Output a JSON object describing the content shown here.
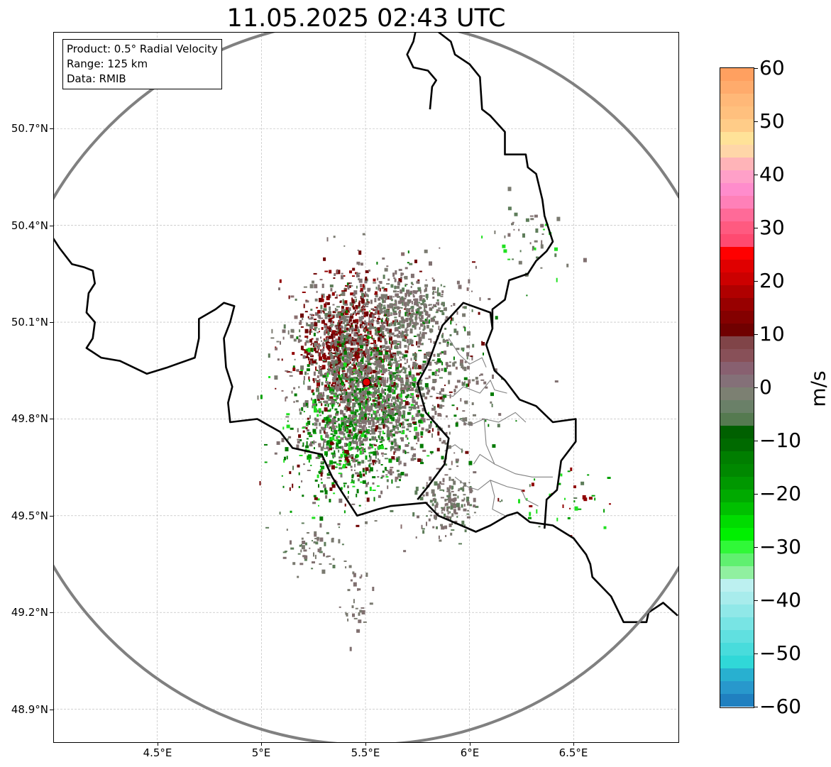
{
  "title": "11.05.2025 02:43 UTC",
  "info_box": {
    "product": "Product: 0.5° Radial Velocity",
    "range": "Range: 125 km",
    "data": "Data: RMIB"
  },
  "map": {
    "extent_lon": [
      4.0,
      7.0
    ],
    "extent_lat": [
      48.8,
      51.0
    ],
    "radar_site": {
      "lon": 5.505,
      "lat": 49.914
    },
    "range_km": 125,
    "lat_ticks": [
      {
        "value": 50.7,
        "label": "50.7°N"
      },
      {
        "value": 50.4,
        "label": "50.4°N"
      },
      {
        "value": 50.1,
        "label": "50.1°N"
      },
      {
        "value": 49.8,
        "label": "49.8°N"
      },
      {
        "value": 49.5,
        "label": "49.5°N"
      },
      {
        "value": 49.2,
        "label": "49.2°N"
      },
      {
        "value": 48.9,
        "label": "48.9°N"
      }
    ],
    "lon_ticks": [
      {
        "value": 4.5,
        "label": "4.5°E"
      },
      {
        "value": 5.0,
        "label": "5°E"
      },
      {
        "value": 5.5,
        "label": "5.5°E"
      },
      {
        "value": 6.0,
        "label": "6°E"
      },
      {
        "value": 6.5,
        "label": "6.5°E"
      }
    ],
    "borders": [
      [
        [
          4.0,
          50.36
        ],
        [
          4.03,
          50.33
        ],
        [
          4.09,
          50.28
        ],
        [
          4.15,
          50.27
        ],
        [
          4.19,
          50.26
        ],
        [
          4.2,
          50.22
        ],
        [
          4.17,
          50.19
        ],
        [
          4.16,
          50.13
        ],
        [
          4.2,
          50.1
        ],
        [
          4.19,
          50.05
        ],
        [
          4.16,
          50.02
        ],
        [
          4.23,
          49.99
        ],
        [
          4.32,
          49.98
        ],
        [
          4.45,
          49.94
        ],
        [
          4.55,
          49.96
        ],
        [
          4.68,
          49.99
        ],
        [
          4.7,
          50.05
        ],
        [
          4.7,
          50.11
        ],
        [
          4.78,
          50.14
        ],
        [
          4.82,
          50.16
        ],
        [
          4.87,
          50.15
        ],
        [
          4.85,
          50.1
        ],
        [
          4.82,
          50.05
        ],
        [
          4.83,
          49.96
        ],
        [
          4.86,
          49.9
        ],
        [
          4.84,
          49.85
        ],
        [
          4.85,
          49.79
        ],
        [
          4.98,
          49.8
        ],
        [
          5.09,
          49.76
        ],
        [
          5.15,
          49.71
        ],
        [
          5.29,
          49.69
        ],
        [
          5.34,
          49.62
        ],
        [
          5.46,
          49.5
        ],
        [
          5.56,
          49.52
        ],
        [
          5.62,
          49.53
        ],
        [
          5.79,
          49.54
        ],
        [
          5.85,
          49.5
        ],
        [
          5.96,
          49.47
        ],
        [
          6.03,
          49.45
        ],
        [
          6.1,
          49.47
        ],
        [
          6.18,
          49.5
        ],
        [
          6.23,
          49.51
        ],
        [
          6.29,
          49.48
        ],
        [
          6.4,
          49.47
        ],
        [
          6.5,
          49.43
        ],
        [
          6.56,
          49.38
        ],
        [
          6.58,
          49.35
        ],
        [
          6.59,
          49.31
        ],
        [
          6.68,
          49.25
        ],
        [
          6.74,
          49.17
        ],
        [
          6.85,
          49.17
        ],
        [
          6.86,
          49.2
        ],
        [
          6.93,
          49.23
        ],
        [
          7.0,
          49.19
        ]
      ],
      [
        [
          5.81,
          50.76
        ],
        [
          5.82,
          50.83
        ],
        [
          5.84,
          50.85
        ],
        [
          5.8,
          50.88
        ],
        [
          5.73,
          50.89
        ],
        [
          5.7,
          50.93
        ],
        [
          5.73,
          50.97
        ],
        [
          5.74,
          51.0
        ]
      ],
      [
        [
          5.85,
          51.0
        ],
        [
          5.91,
          50.97
        ],
        [
          5.93,
          50.93
        ],
        [
          6.0,
          50.9
        ],
        [
          6.05,
          50.86
        ],
        [
          6.06,
          50.76
        ],
        [
          6.1,
          50.74
        ],
        [
          6.17,
          50.69
        ],
        [
          6.17,
          50.62
        ],
        [
          6.22,
          50.62
        ],
        [
          6.27,
          50.62
        ],
        [
          6.28,
          50.58
        ],
        [
          6.32,
          50.56
        ],
        [
          6.35,
          50.48
        ],
        [
          6.36,
          50.43
        ],
        [
          6.4,
          50.35
        ],
        [
          6.37,
          50.32
        ],
        [
          6.32,
          50.29
        ],
        [
          6.28,
          50.25
        ],
        [
          6.19,
          50.23
        ],
        [
          6.17,
          50.17
        ],
        [
          6.11,
          50.14
        ],
        [
          6.11,
          50.08
        ],
        [
          6.08,
          50.03
        ],
        [
          6.12,
          49.95
        ],
        [
          6.17,
          49.92
        ],
        [
          6.24,
          49.86
        ],
        [
          6.32,
          49.84
        ],
        [
          6.4,
          49.79
        ],
        [
          6.51,
          49.8
        ],
        [
          6.51,
          49.73
        ],
        [
          6.44,
          49.67
        ],
        [
          6.42,
          49.58
        ],
        [
          6.37,
          49.55
        ],
        [
          6.36,
          49.46
        ]
      ],
      [
        [
          5.75,
          49.55
        ],
        [
          5.8,
          49.59
        ],
        [
          5.88,
          49.66
        ],
        [
          5.9,
          49.74
        ],
        [
          5.79,
          49.82
        ],
        [
          5.75,
          49.91
        ],
        [
          5.8,
          49.97
        ],
        [
          5.84,
          50.04
        ],
        [
          5.87,
          50.09
        ],
        [
          5.97,
          50.16
        ],
        [
          6.1,
          50.13
        ],
        [
          6.11,
          50.08
        ]
      ]
    ],
    "cantons": [
      [
        [
          5.9,
          50.05
        ],
        [
          5.95,
          50.0
        ],
        [
          6.0,
          49.97
        ],
        [
          6.06,
          49.99
        ],
        [
          6.08,
          49.96
        ]
      ],
      [
        [
          5.84,
          49.88
        ],
        [
          5.92,
          49.87
        ],
        [
          5.97,
          49.9
        ],
        [
          6.05,
          49.88
        ],
        [
          6.1,
          49.92
        ],
        [
          6.12,
          49.89
        ],
        [
          6.18,
          49.88
        ]
      ],
      [
        [
          5.95,
          49.8
        ],
        [
          6.0,
          49.78
        ],
        [
          6.07,
          49.8
        ],
        [
          6.14,
          49.79
        ],
        [
          6.22,
          49.82
        ],
        [
          6.27,
          49.79
        ]
      ],
      [
        [
          6.07,
          49.8
        ],
        [
          6.08,
          49.72
        ],
        [
          6.12,
          49.66
        ],
        [
          6.22,
          49.63
        ],
        [
          6.3,
          49.62
        ],
        [
          6.4,
          49.62
        ]
      ],
      [
        [
          5.93,
          49.62
        ],
        [
          5.99,
          49.59
        ],
        [
          6.04,
          49.58
        ],
        [
          6.1,
          49.61
        ],
        [
          6.18,
          49.59
        ],
        [
          6.25,
          49.58
        ],
        [
          6.27,
          49.55
        ],
        [
          6.33,
          49.53
        ]
      ],
      [
        [
          6.1,
          49.61
        ],
        [
          6.12,
          49.56
        ],
        [
          6.11,
          49.52
        ],
        [
          6.17,
          49.5
        ]
      ],
      [
        [
          5.88,
          49.7
        ],
        [
          5.93,
          49.72
        ],
        [
          5.97,
          49.7
        ]
      ],
      [
        [
          6.02,
          49.66
        ],
        [
          6.05,
          49.69
        ],
        [
          6.12,
          49.66
        ]
      ]
    ],
    "echo_colors": [
      "#807070",
      "#7a7a70",
      "#8a6e6e",
      "#5e7d5a",
      "#6e0000",
      "#900000",
      "#007a00",
      "#00a000",
      "#20e020"
    ],
    "echo_clusters": [
      {
        "lon": 5.4,
        "lat": 50.05,
        "sd_lon": 0.11,
        "sd_lat": 0.09,
        "count": 900,
        "colors": [
          4,
          4,
          4,
          5,
          5,
          0,
          0,
          1,
          3
        ]
      },
      {
        "lon": 5.5,
        "lat": 49.85,
        "sd_lon": 0.14,
        "sd_lat": 0.1,
        "count": 900,
        "colors": [
          0,
          0,
          0,
          1,
          3,
          3,
          6,
          6,
          7,
          8
        ]
      },
      {
        "lon": 5.6,
        "lat": 49.93,
        "sd_lon": 0.22,
        "sd_lat": 0.16,
        "count": 1100,
        "colors": [
          0,
          0,
          0,
          1,
          1,
          2,
          3,
          4,
          6
        ]
      },
      {
        "lon": 5.7,
        "lat": 50.15,
        "sd_lon": 0.1,
        "sd_lat": 0.05,
        "count": 300,
        "colors": [
          0,
          0,
          1,
          3
        ]
      },
      {
        "lon": 5.35,
        "lat": 49.7,
        "sd_lon": 0.13,
        "sd_lat": 0.08,
        "count": 280,
        "colors": [
          6,
          6,
          7,
          8,
          0,
          4
        ]
      },
      {
        "lon": 5.9,
        "lat": 49.55,
        "sd_lon": 0.07,
        "sd_lat": 0.05,
        "count": 160,
        "colors": [
          0,
          0,
          1,
          3
        ]
      },
      {
        "lon": 5.25,
        "lat": 49.4,
        "sd_lon": 0.08,
        "sd_lat": 0.04,
        "count": 60,
        "colors": [
          0,
          1,
          3
        ]
      },
      {
        "lon": 5.45,
        "lat": 49.25,
        "sd_lon": 0.04,
        "sd_lat": 0.06,
        "count": 30,
        "colors": [
          0,
          1
        ]
      },
      {
        "lon": 6.45,
        "lat": 49.55,
        "sd_lon": 0.12,
        "sd_lat": 0.05,
        "count": 40,
        "colors": [
          7,
          8,
          3,
          5
        ]
      },
      {
        "lon": 6.3,
        "lat": 50.35,
        "sd_lon": 0.1,
        "sd_lat": 0.06,
        "count": 45,
        "colors": [
          0,
          1,
          3,
          8
        ]
      }
    ]
  },
  "colorbar": {
    "unit": "m/s",
    "min": -60,
    "max": 60,
    "ticks": [
      {
        "value": 60,
        "label": "60"
      },
      {
        "value": 50,
        "label": "50"
      },
      {
        "value": 40,
        "label": "40"
      },
      {
        "value": 30,
        "label": "30"
      },
      {
        "value": 20,
        "label": "20"
      },
      {
        "value": 10,
        "label": "10"
      },
      {
        "value": 0,
        "label": "0"
      },
      {
        "value": -10,
        "label": "−10"
      },
      {
        "value": -20,
        "label": "−20"
      },
      {
        "value": -30,
        "label": "−30"
      },
      {
        "value": -40,
        "label": "−40"
      },
      {
        "value": -50,
        "label": "−50"
      },
      {
        "value": -60,
        "label": "−60"
      }
    ],
    "colors_top_to_bottom": [
      "#ffa060",
      "#ffab6c",
      "#ffb878",
      "#ffc07e",
      "#ffcc88",
      "#ffe298",
      "#ffd6a8",
      "#ffb4b8",
      "#ffa0c8",
      "#ff8ccc",
      "#ff80b8",
      "#ff6a98",
      "#ff5a80",
      "#ff4a70",
      "#ff0000",
      "#e00000",
      "#cc0000",
      "#b00000",
      "#980000",
      "#840000",
      "#700000",
      "#804448",
      "#885058",
      "#886070",
      "#847078",
      "#7c8072",
      "#6a8068",
      "#557a50",
      "#006000",
      "#006a00",
      "#007e00",
      "#008800",
      "#009800",
      "#00aa00",
      "#00c000",
      "#00dc00",
      "#00f000",
      "#30f838",
      "#60f070",
      "#90f0a0",
      "#bcf0f0",
      "#a8ecec",
      "#90e8e8",
      "#78e4e4",
      "#60e0e0",
      "#48dcdc",
      "#30d8d8",
      "#28b0d0",
      "#2898cc",
      "#2080c0"
    ]
  }
}
